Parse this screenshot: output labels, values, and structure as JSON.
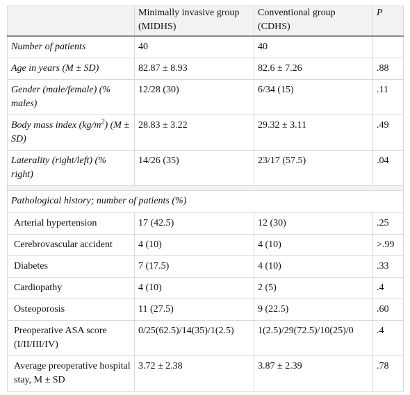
{
  "header": {
    "col0": "",
    "col1": "Minimally invasive group (MIDHS)",
    "col2": "Conventional group (CDHS)",
    "col3": "P"
  },
  "rows_main": [
    {
      "label": "Number of patients",
      "midhs": "40",
      "cdhs": "40",
      "p": ""
    },
    {
      "label": "Age in years (M ± SD)",
      "midhs": "82.87 ± 8.93",
      "cdhs": "82.6 ± 7.26",
      "p": ".88"
    },
    {
      "label": "Gender (male/female) (% males)",
      "midhs": "12/28 (30)",
      "cdhs": "6/34 (15)",
      "p": ".11"
    },
    {
      "label_pre": "Body mass index (kg/m",
      "label_sup": "2",
      "label_post": ") (M ± SD)",
      "midhs": "28.83 ± 3.22",
      "cdhs": "29.32 ± 3.11",
      "p": ".49"
    },
    {
      "label": "Laterality (right/left) (% right)",
      "midhs": "14/26 (35)",
      "cdhs": "23/17 (57.5)",
      "p": ".04"
    }
  ],
  "section_title": "Pathological history; number of patients (%)",
  "rows_history": [
    {
      "label": "Arterial hypertension",
      "midhs": "17 (42.5)",
      "cdhs": "12 (30)",
      "p": ".25"
    },
    {
      "label": "Cerebrovascular accident",
      "midhs": "4 (10)",
      "cdhs": "4 (10)",
      "p": ">.99"
    },
    {
      "label": "Diabetes",
      "midhs": "7 (17.5)",
      "cdhs": "4 (10)",
      "p": ".33"
    },
    {
      "label": "Cardiopathy",
      "midhs": "4 (10)",
      "cdhs": "2 (5)",
      "p": ".4"
    },
    {
      "label": "Osteoporosis",
      "midhs": "11 (27.5)",
      "cdhs": "9 (22.5)",
      "p": ".60"
    },
    {
      "label": "Preoperative ASA score (I/II/III/IV)",
      "midhs": "0/25(62.5)/14(35)/1(2.5)",
      "cdhs": "1(2.5)/29(72.5)/10(25)/0",
      "p": ".4"
    },
    {
      "label": "Average preoperative hospital stay, M ± SD",
      "midhs": "3.72 ± 2.38",
      "cdhs": "3.87 ± 2.39",
      "p": ".78"
    }
  ]
}
